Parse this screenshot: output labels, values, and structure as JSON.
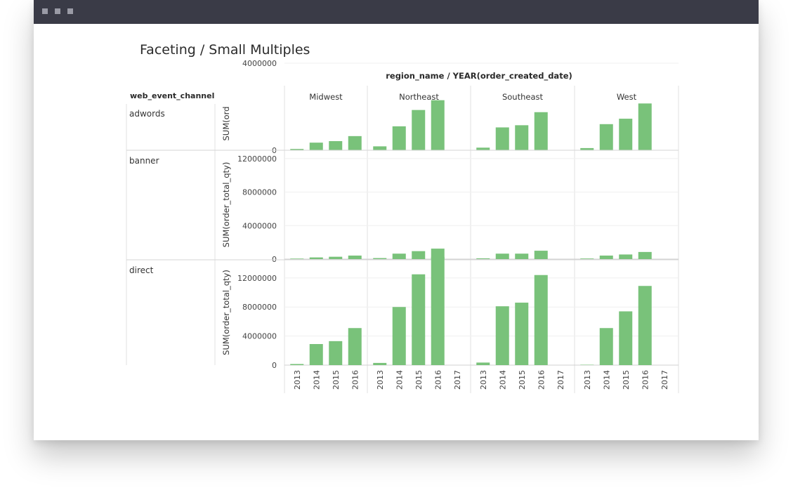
{
  "window": {
    "controls": [
      "window-control",
      "window-control",
      "window-control"
    ]
  },
  "page": {
    "title": "Faceting / Small Multiples"
  },
  "chart_data": {
    "type": "bar",
    "column_header": "region_name / YEAR(order_created_date)",
    "row_header": "web_event_channel",
    "columns": [
      "Midwest",
      "Northeast",
      "Southeast",
      "West"
    ],
    "x": [
      "2013",
      "2014",
      "2015",
      "2016",
      "2017"
    ],
    "bar_color": "#79c27a",
    "grid": true,
    "rows": [
      {
        "name": "adwords",
        "ylabel": "SUM(ord",
        "ylim": [
          0,
          4000000
        ],
        "ticks": [
          0,
          4000000
        ],
        "tick_labels": [
          "0",
          "4000000"
        ],
        "values": [
          [
            60000,
            350000,
            420000,
            650000,
            0
          ],
          [
            180000,
            1100000,
            1850000,
            2300000,
            0
          ],
          [
            120000,
            1050000,
            1150000,
            1750000,
            0
          ],
          [
            100000,
            1200000,
            1450000,
            2150000,
            0
          ]
        ]
      },
      {
        "name": "banner",
        "ylabel": "SUM(order_total_qty)",
        "ylim": [
          0,
          13000000
        ],
        "ticks": [
          0,
          4000000,
          8000000,
          12000000
        ],
        "tick_labels": [
          "0",
          "4000000",
          "8000000",
          "12000000"
        ],
        "values": [
          [
            60000,
            200000,
            280000,
            420000,
            0
          ],
          [
            120000,
            650000,
            950000,
            1250000,
            0
          ],
          [
            90000,
            650000,
            650000,
            1000000,
            0
          ],
          [
            70000,
            420000,
            550000,
            850000,
            0
          ]
        ]
      },
      {
        "name": "direct",
        "ylabel": "SUM(order_total_qty)",
        "ylim": [
          0,
          14500000
        ],
        "ticks": [
          0,
          4000000,
          8000000,
          12000000
        ],
        "tick_labels": [
          "0",
          "4000000",
          "8000000",
          "12000000"
        ],
        "values": [
          [
            150000,
            2900000,
            3300000,
            5100000,
            0
          ],
          [
            300000,
            8000000,
            12500000,
            14900000,
            0
          ],
          [
            350000,
            8100000,
            8600000,
            12400000,
            0
          ],
          [
            50000,
            5100000,
            7400000,
            10900000,
            0
          ]
        ]
      }
    ]
  }
}
